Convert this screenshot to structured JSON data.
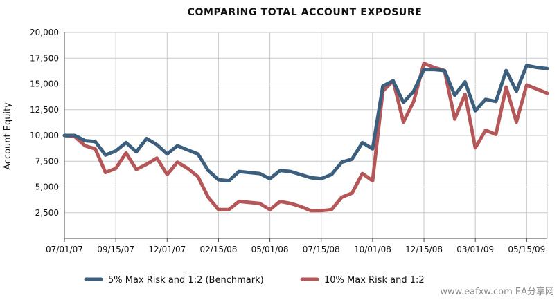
{
  "chart_data": {
    "type": "line",
    "title": "COMPARING TOTAL ACCOUNT EXPOSURE",
    "ylabel": "Account Equity",
    "xlabel": "",
    "ylim": [
      0,
      20000
    ],
    "yticks": [
      {
        "value": 2500,
        "label": "2,500"
      },
      {
        "value": 5000,
        "label": "5,000"
      },
      {
        "value": 7500,
        "label": "7,500"
      },
      {
        "value": 10000,
        "label": "10,000"
      },
      {
        "value": 12500,
        "label": "12,500"
      },
      {
        "value": 15000,
        "label": "15,000"
      },
      {
        "value": 17500,
        "label": "17,500"
      },
      {
        "value": 20000,
        "label": "20,000"
      }
    ],
    "x": [
      "2007-07-01",
      "2007-07-15",
      "2007-08-01",
      "2007-08-15",
      "2007-09-01",
      "2007-09-15",
      "2007-10-01",
      "2007-10-15",
      "2007-11-01",
      "2007-11-15",
      "2007-12-01",
      "2007-12-15",
      "2008-01-01",
      "2008-01-15",
      "2008-02-01",
      "2008-02-15",
      "2008-03-01",
      "2008-03-15",
      "2008-04-01",
      "2008-04-15",
      "2008-05-01",
      "2008-05-15",
      "2008-06-01",
      "2008-06-15",
      "2008-07-01",
      "2008-07-15",
      "2008-08-01",
      "2008-08-15",
      "2008-09-01",
      "2008-09-15",
      "2008-10-01",
      "2008-10-15",
      "2008-11-01",
      "2008-11-15",
      "2008-12-01",
      "2008-12-15",
      "2009-01-01",
      "2009-01-15",
      "2009-02-01",
      "2009-02-15",
      "2009-03-01",
      "2009-03-15",
      "2009-04-01",
      "2009-04-15",
      "2009-05-01",
      "2009-05-15",
      "2009-06-01",
      "2009-06-15"
    ],
    "xticks": [
      {
        "index": 0,
        "label": "07/01/07"
      },
      {
        "index": 5,
        "label": "09/15/07"
      },
      {
        "index": 10,
        "label": "12/01/07"
      },
      {
        "index": 15,
        "label": "02/15/08"
      },
      {
        "index": 20,
        "label": "05/01/08"
      },
      {
        "index": 25,
        "label": "07/15/08"
      },
      {
        "index": 30,
        "label": "10/01/08"
      },
      {
        "index": 35,
        "label": "12/15/08"
      },
      {
        "index": 40,
        "label": "03/01/09"
      },
      {
        "index": 45,
        "label": "05/15/09"
      }
    ],
    "series": [
      {
        "name": "5% Max Risk and 1:2 (Benchmark)",
        "color": "#3d5f7e",
        "values": [
          10000,
          10000,
          9500,
          9400,
          8100,
          8500,
          9300,
          8400,
          9700,
          9100,
          8200,
          9000,
          8600,
          8200,
          6600,
          5700,
          5600,
          6500,
          6400,
          6300,
          5800,
          6600,
          6500,
          6200,
          5900,
          5800,
          6200,
          7400,
          7700,
          9300,
          8700,
          14800,
          15300,
          13200,
          14300,
          16400,
          16400,
          16300,
          13900,
          15200,
          12400,
          13500,
          13300,
          16300,
          14300,
          16800,
          16600,
          16500
        ]
      },
      {
        "name": "10% Max Risk and 1:2",
        "color": "#b55758",
        "values": [
          10000,
          9900,
          9000,
          8700,
          6400,
          6800,
          8300,
          6700,
          7200,
          7800,
          6200,
          7400,
          6800,
          6000,
          4000,
          2800,
          2800,
          3600,
          3500,
          3400,
          2800,
          3600,
          3400,
          3100,
          2700,
          2700,
          2800,
          4000,
          4400,
          6300,
          5600,
          14300,
          15300,
          11300,
          13300,
          17000,
          16600,
          16300,
          11600,
          14000,
          8800,
          10500,
          10100,
          14700,
          11300,
          14900,
          14500,
          14100
        ]
      }
    ],
    "grid": true,
    "legend_position": "bottom"
  },
  "watermark": "www.eafxw.com  EA分享网"
}
